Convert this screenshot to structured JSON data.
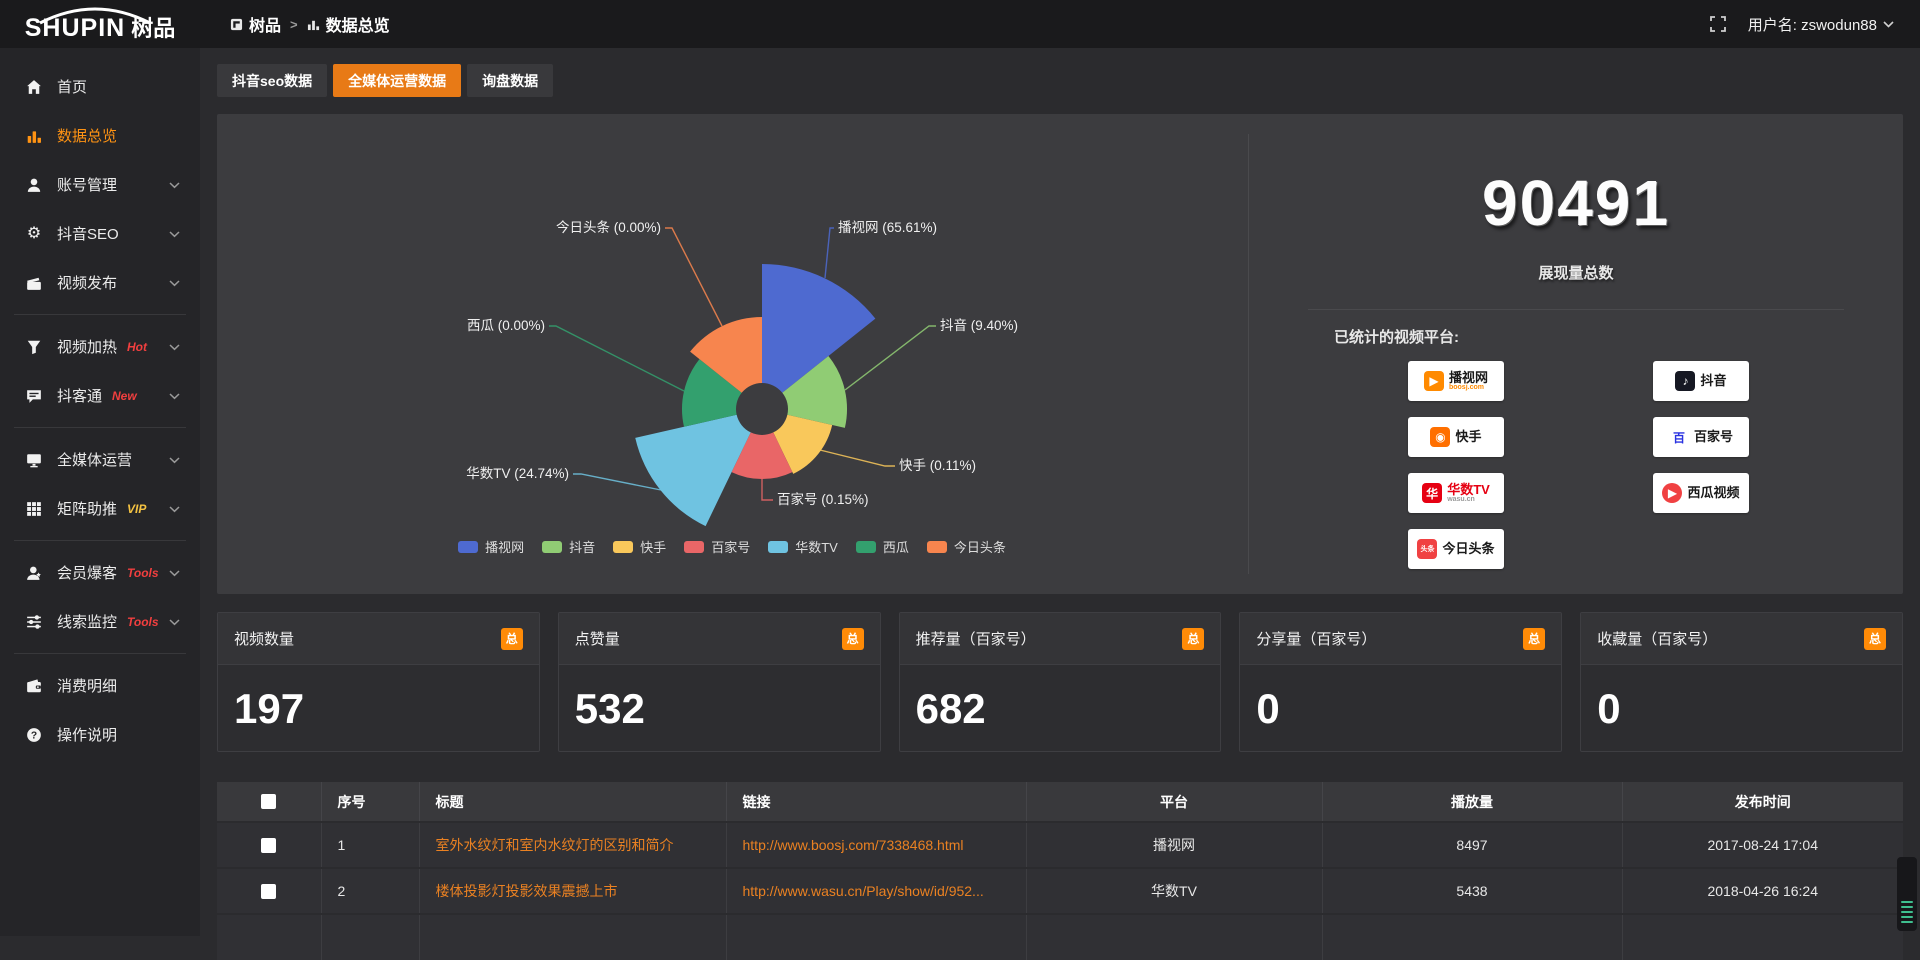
{
  "header": {
    "logo_text": "SHUPIN",
    "logo_suffix": "树品",
    "breadcrumb": {
      "root": "树品",
      "separator": ">",
      "current": "数据总览"
    },
    "username": "用户名: zswodun88"
  },
  "sidebar": {
    "items": [
      {
        "label": "首页",
        "icon": "home"
      },
      {
        "label": "数据总览",
        "icon": "bar-chart",
        "active": true
      },
      {
        "label": "账号管理",
        "icon": "user",
        "expandable": true
      },
      {
        "label": "抖音SEO",
        "icon": "gear",
        "expandable": true
      },
      {
        "label": "视频发布",
        "icon": "publish",
        "expandable": true,
        "divider_after": true
      },
      {
        "label": "视频加热",
        "icon": "funnel",
        "tag": "Hot",
        "tag_style": "red",
        "expandable": true
      },
      {
        "label": "抖客通",
        "icon": "chat",
        "tag": "New",
        "tag_style": "red",
        "expandable": true,
        "divider_after": true
      },
      {
        "label": "全媒体运营",
        "icon": "monitor",
        "expandable": true
      },
      {
        "label": "矩阵助推",
        "icon": "grid",
        "tag": "VIP",
        "tag_style": "gold",
        "expandable": true,
        "divider_after": true
      },
      {
        "label": "会员爆客",
        "icon": "member",
        "tag": "Tools",
        "tag_style": "red",
        "expandable": true
      },
      {
        "label": "线索监控",
        "icon": "sliders",
        "tag": "Tools",
        "tag_style": "red",
        "expandable": true,
        "divider_after": true
      },
      {
        "label": "消费明细",
        "icon": "wallet"
      },
      {
        "label": "操作说明",
        "icon": "help"
      }
    ]
  },
  "tabs": {
    "items": [
      {
        "label": "抖音seo数据",
        "active": false
      },
      {
        "label": "全媒体运营数据",
        "active": true
      },
      {
        "label": "询盘数据",
        "active": false
      }
    ]
  },
  "chart_data": {
    "type": "pie",
    "variant": "nightingale-rose",
    "label_format": "{name} ({value}%)",
    "legend_position": "bottom",
    "slices": [
      {
        "name": "播视网",
        "pct": 65.61,
        "color": "#4e6ad0",
        "radius": 145
      },
      {
        "name": "抖音",
        "pct": 9.4,
        "color": "#90cc74",
        "radius": 85
      },
      {
        "name": "快手",
        "pct": 0.11,
        "color": "#f9c85b",
        "radius": 72
      },
      {
        "name": "百家号",
        "pct": 0.15,
        "color": "#e96667",
        "radius": 70
      },
      {
        "name": "华数TV",
        "pct": 24.74,
        "color": "#6fc3e1",
        "radius": 130
      },
      {
        "name": "西瓜",
        "pct": 0.0,
        "color": "#33a06e",
        "radius": 80
      },
      {
        "name": "今日头条",
        "pct": 0.0,
        "color": "#f7854e",
        "radius": 92
      }
    ]
  },
  "summary": {
    "total_value": "90491",
    "total_label": "展现量总数",
    "platforms_label": "已统计的视频平台:",
    "platforms": [
      {
        "name": "播视网",
        "sub": "boosj.com",
        "col": "left",
        "icon_bg": "#ff8a00",
        "icon_glyph": "▶",
        "icon_color": "#fff",
        "sub_color": "#ff8a00"
      },
      {
        "name": "快手",
        "col": "left",
        "icon_bg": "#ff6f00",
        "icon_glyph": "◉",
        "icon_color": "#fff"
      },
      {
        "name": "华数TV",
        "sub": "wasu.cn",
        "col": "left",
        "icon_bg": "#e60012",
        "icon_glyph": "华",
        "icon_color": "#fff",
        "name_color": "#e60012",
        "sub_color": "#999999"
      },
      {
        "name": "今日头条",
        "col": "left",
        "icon_bg": "#f04142",
        "icon_glyph": "头条",
        "icon_color": "#fff",
        "glyph_small": true
      },
      {
        "name": "抖音",
        "col": "right",
        "icon_bg": "#161823",
        "icon_glyph": "♪",
        "icon_color": "#fff"
      },
      {
        "name": "百家号",
        "col": "right",
        "icon_bg": "#ffffff",
        "icon_glyph": "百",
        "icon_color": "#2932e1"
      },
      {
        "name": "西瓜视频",
        "col": "right",
        "icon_bg": "#f04142",
        "icon_glyph": "▶",
        "icon_color": "#fff",
        "icon_round": true
      }
    ]
  },
  "stat_cards": [
    {
      "title": "视频数量",
      "badge": "总",
      "value": "197"
    },
    {
      "title": "点赞量",
      "badge": "总",
      "value": "532"
    },
    {
      "title": "推荐量（百家号）",
      "badge": "总",
      "value": "682"
    },
    {
      "title": "分享量（百家号）",
      "badge": "总",
      "value": "0"
    },
    {
      "title": "收藏量（百家号）",
      "badge": "总",
      "value": "0"
    }
  ],
  "table": {
    "headers": [
      "",
      "序号",
      "标题",
      "链接",
      "平台",
      "播放量",
      "发布时间"
    ],
    "rows": [
      {
        "no": "1",
        "title": "室外水纹灯和室内水纹灯的区别和简介",
        "link": "http://www.boosj.com/7338468.html",
        "platform": "播视网",
        "plays": "8497",
        "time": "2017-08-24 17:04"
      },
      {
        "no": "2",
        "title": "楼体投影灯投影效果震撼上市",
        "link": "http://www.wasu.cn/Play/show/id/952...",
        "platform": "华数TV",
        "plays": "5438",
        "time": "2018-04-26 16:24"
      }
    ]
  },
  "colors": {
    "accent_orange": "#e87a16",
    "sidebar_active_orange": "#ff9313",
    "badge_orange": "#ff8b07",
    "link_orange": "#ea8122",
    "tag_red": "#f23f3f",
    "tag_gold": "#f5c342",
    "widget_green": "#3fbf8f"
  }
}
